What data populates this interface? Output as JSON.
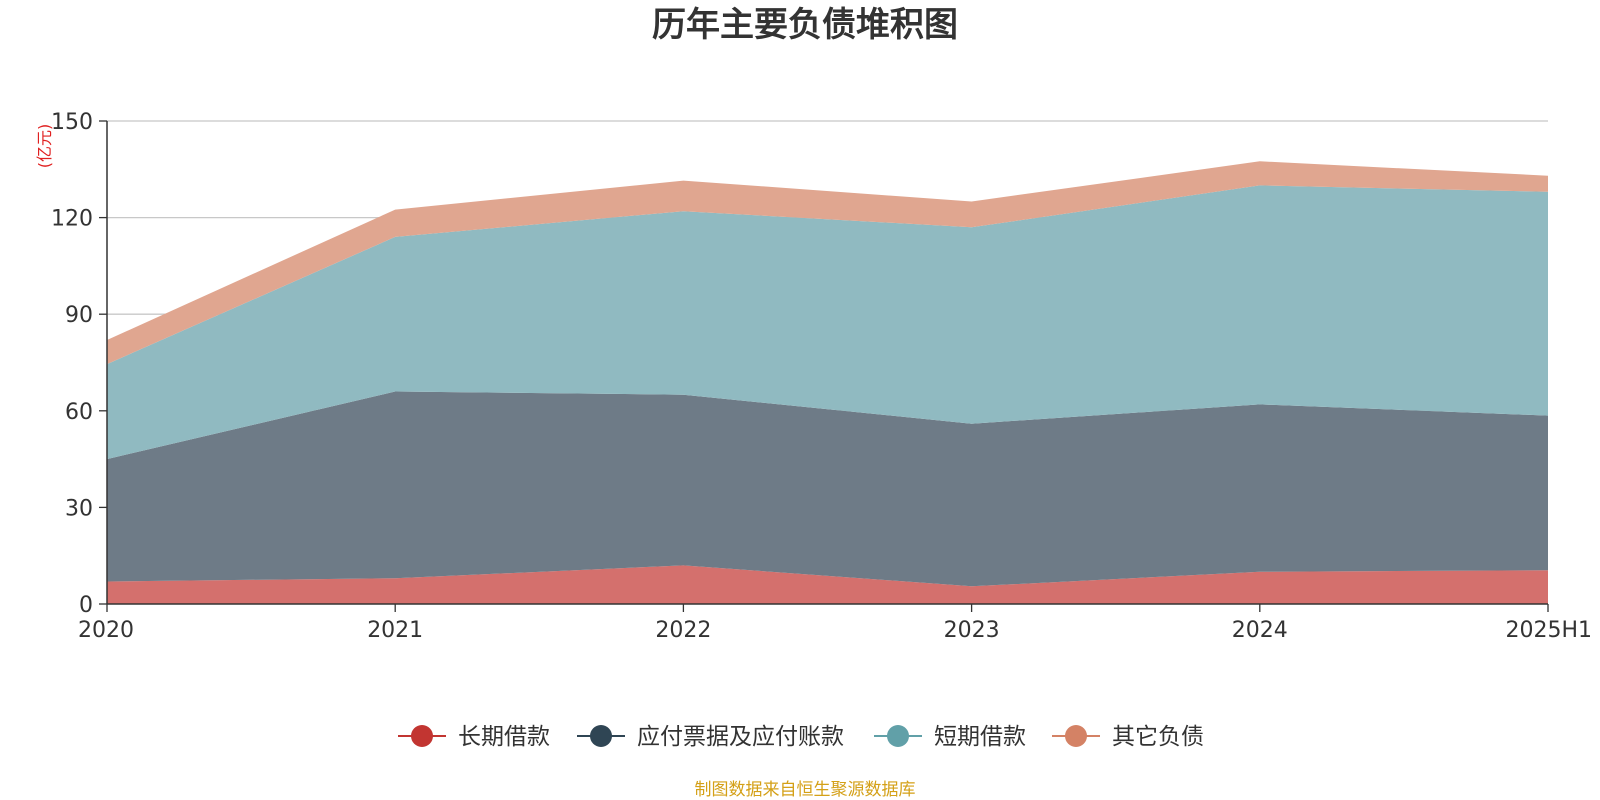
{
  "chart_data": {
    "type": "area",
    "stacked": true,
    "title": "历年主要负债堆积图",
    "ylabel": "(亿元)",
    "categories": [
      "2020",
      "2021",
      "2022",
      "2023",
      "2024",
      "2025H1"
    ],
    "ylim": [
      0,
      150
    ],
    "yticks": [
      0,
      30,
      60,
      90,
      120,
      150
    ],
    "grid": true,
    "legend_position": "bottom",
    "series": [
      {
        "name": "长期借款",
        "color": "#c23531",
        "fill": "#d4706d",
        "values": [
          7,
          8,
          12,
          5.5,
          10,
          10.5
        ]
      },
      {
        "name": "应付票据及应付账款",
        "color": "#2f4554",
        "fill": "#6e7b87",
        "values": [
          38,
          58,
          53,
          50.5,
          52,
          48
        ]
      },
      {
        "name": "短期借款",
        "color": "#61a0a8",
        "fill": "#90bac1",
        "values": [
          29.5,
          48,
          57,
          61,
          68,
          69.5
        ]
      },
      {
        "name": "其它负债",
        "color": "#d48265",
        "fill": "#e0a690",
        "values": [
          7.5,
          8.5,
          9.5,
          8,
          7.5,
          5
        ]
      }
    ],
    "source": "制图数据来自恒生聚源数据库"
  }
}
